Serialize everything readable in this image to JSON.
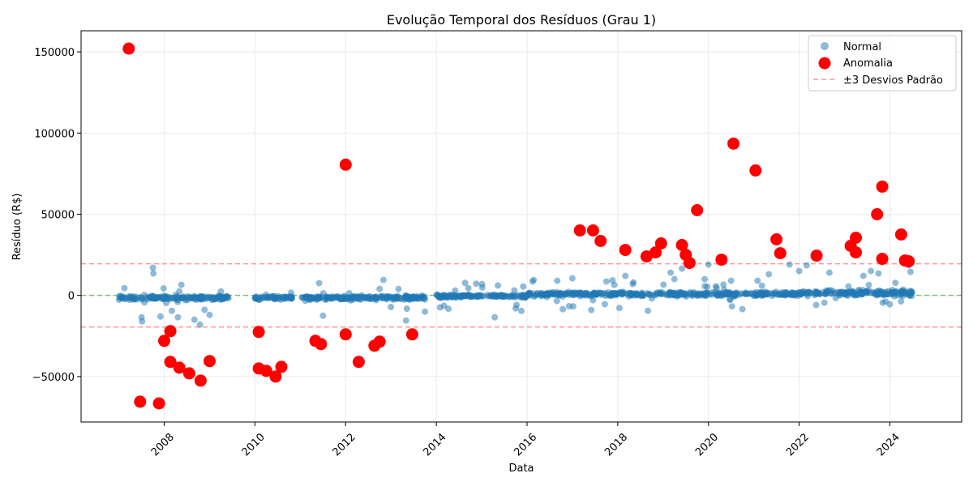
{
  "chart_data": {
    "type": "scatter",
    "title": "Evolução Temporal dos Resíduos (Grau 1)",
    "xlabel": "Data",
    "ylabel": "Resíduo (R$)",
    "x_type": "date",
    "xlim": [
      "2006-03-01",
      "2025-08-01"
    ],
    "ylim": [
      -78000,
      163000
    ],
    "x_ticks": [
      "2008",
      "2010",
      "2012",
      "2014",
      "2016",
      "2018",
      "2020",
      "2022",
      "2024"
    ],
    "y_ticks": [
      -50000,
      0,
      50000,
      100000,
      150000
    ],
    "y_tick_labels": [
      "−50000",
      "0",
      "50000",
      "100000",
      "150000"
    ],
    "grid": true,
    "legend_position": "top-right",
    "legend": [
      "Normal",
      "Anomalia",
      "±3 Desvios Padrão"
    ],
    "colors": {
      "normal": "#1f77b4",
      "anomaly": "#ff0000",
      "threshold": "#ff9896",
      "zero_line": "#2ca02c"
    },
    "reference_lines": {
      "zero": 0,
      "upper_threshold": 19500,
      "lower_threshold": -19500
    },
    "normal_segments": [
      [
        "2007-01",
        "2009-06"
      ],
      [
        "2010-01",
        "2010-11"
      ],
      [
        "2011-01",
        "2013-10"
      ],
      [
        "2014-01",
        "2024-07"
      ]
    ],
    "normal_outliers": [
      {
        "x": "2007-02-15",
        "y": 4500
      },
      {
        "x": "2007-07-01",
        "y": -13500
      },
      {
        "x": "2007-07-05",
        "y": -16000
      },
      {
        "x": "2007-10-01",
        "y": 17000
      },
      {
        "x": "2007-10-05",
        "y": 13500
      },
      {
        "x": "2007-12-01",
        "y": -13000
      },
      {
        "x": "2008-05-01",
        "y": 2500
      },
      {
        "x": "2008-04-20",
        "y": -13500
      },
      {
        "x": "2008-09-01",
        "y": -15000
      },
      {
        "x": "2008-10-15",
        "y": -18000
      },
      {
        "x": "2009-01-01",
        "y": -12000
      },
      {
        "x": "2009-04-01",
        "y": 2500
      },
      {
        "x": "2011-06-01",
        "y": 7500
      },
      {
        "x": "2011-07-01",
        "y": -12500
      },
      {
        "x": "2012-10-01",
        "y": 4000
      },
      {
        "x": "2012-11-01",
        "y": 9500
      },
      {
        "x": "2013-05-01",
        "y": -15500
      },
      {
        "x": "2013-10-01",
        "y": -10000
      },
      {
        "x": "2014-06-01",
        "y": 3000
      },
      {
        "x": "2014-09-15",
        "y": 4500
      },
      {
        "x": "2015-04-15",
        "y": -13500
      },
      {
        "x": "2015-10-01",
        "y": -8000
      },
      {
        "x": "2015-12-01",
        "y": 5500
      },
      {
        "x": "2016-02-15",
        "y": 8500
      },
      {
        "x": "2016-09-01",
        "y": 9000
      },
      {
        "x": "2016-10-15",
        "y": -8500
      },
      {
        "x": "2017-01-01",
        "y": 10500
      },
      {
        "x": "2017-06-01",
        "y": -9000
      },
      {
        "x": "2017-10-01",
        "y": 8500
      },
      {
        "x": "2018-03-01",
        "y": 12000
      },
      {
        "x": "2018-05-01",
        "y": 7000
      },
      {
        "x": "2018-09-01",
        "y": -9500
      },
      {
        "x": "2019-03-01",
        "y": 14000
      },
      {
        "x": "2019-04-01",
        "y": 10000
      },
      {
        "x": "2019-06-01",
        "y": 16500
      },
      {
        "x": "2019-12-01",
        "y": 10000
      },
      {
        "x": "2020-01-01",
        "y": 19000
      },
      {
        "x": "2020-07-01",
        "y": 9000
      },
      {
        "x": "2021-02-01",
        "y": 9000
      },
      {
        "x": "2021-05-01",
        "y": 13000
      },
      {
        "x": "2021-10-15",
        "y": 19000
      },
      {
        "x": "2022-01-01",
        "y": 15000
      },
      {
        "x": "2022-03-01",
        "y": 18500
      },
      {
        "x": "2022-09-01",
        "y": 14000
      },
      {
        "x": "2023-06-01",
        "y": 12000
      },
      {
        "x": "2023-08-01",
        "y": 15000
      },
      {
        "x": "2023-10-01",
        "y": 13500
      },
      {
        "x": "2024-01-01",
        "y": -5500
      },
      {
        "x": "2024-06-01",
        "y": 18500
      },
      {
        "x": "2024-06-15",
        "y": 14500
      }
    ],
    "anomalies": [
      {
        "x": "2007-03-20",
        "y": 152000
      },
      {
        "x": "2007-06-20",
        "y": -65500
      },
      {
        "x": "2007-11-20",
        "y": -66500
      },
      {
        "x": "2008-01-01",
        "y": -28000
      },
      {
        "x": "2008-02-20",
        "y": -22000
      },
      {
        "x": "2008-02-20",
        "y": -41000
      },
      {
        "x": "2008-05-01",
        "y": -44500
      },
      {
        "x": "2008-07-20",
        "y": -48000
      },
      {
        "x": "2008-10-20",
        "y": -52500
      },
      {
        "x": "2009-01-01",
        "y": -40500
      },
      {
        "x": "2010-02-01",
        "y": -22500
      },
      {
        "x": "2010-02-01",
        "y": -45000
      },
      {
        "x": "2010-04-01",
        "y": -46500
      },
      {
        "x": "2010-06-15",
        "y": -50000
      },
      {
        "x": "2010-08-01",
        "y": -44000
      },
      {
        "x": "2011-05-01",
        "y": -28000
      },
      {
        "x": "2011-06-15",
        "y": -30000
      },
      {
        "x": "2012-01-01",
        "y": 80500
      },
      {
        "x": "2012-01-01",
        "y": -24000
      },
      {
        "x": "2012-04-15",
        "y": -41000
      },
      {
        "x": "2012-08-20",
        "y": -31000
      },
      {
        "x": "2012-10-01",
        "y": -28500
      },
      {
        "x": "2013-06-20",
        "y": -24000
      },
      {
        "x": "2017-03-01",
        "y": 40000
      },
      {
        "x": "2017-06-15",
        "y": 40000
      },
      {
        "x": "2017-08-15",
        "y": 33500
      },
      {
        "x": "2018-03-01",
        "y": 28000
      },
      {
        "x": "2018-08-20",
        "y": 24000
      },
      {
        "x": "2018-11-01",
        "y": 26500
      },
      {
        "x": "2018-12-15",
        "y": 32000
      },
      {
        "x": "2019-06-01",
        "y": 31000
      },
      {
        "x": "2019-07-01",
        "y": 25000
      },
      {
        "x": "2019-08-01",
        "y": 20000
      },
      {
        "x": "2019-10-01",
        "y": 52500
      },
      {
        "x": "2020-04-15",
        "y": 22000
      },
      {
        "x": "2020-07-20",
        "y": 93500
      },
      {
        "x": "2021-01-15",
        "y": 77000
      },
      {
        "x": "2021-07-01",
        "y": 34500
      },
      {
        "x": "2021-08-01",
        "y": 26000
      },
      {
        "x": "2022-05-20",
        "y": 24500
      },
      {
        "x": "2023-02-20",
        "y": 30500
      },
      {
        "x": "2023-04-01",
        "y": 35500
      },
      {
        "x": "2023-04-01",
        "y": 26500
      },
      {
        "x": "2023-09-20",
        "y": 50000
      },
      {
        "x": "2023-11-01",
        "y": 67000
      },
      {
        "x": "2023-11-01",
        "y": 22500
      },
      {
        "x": "2024-04-01",
        "y": 37500
      },
      {
        "x": "2024-05-01",
        "y": 21500
      },
      {
        "x": "2024-06-01",
        "y": 21000
      }
    ]
  }
}
